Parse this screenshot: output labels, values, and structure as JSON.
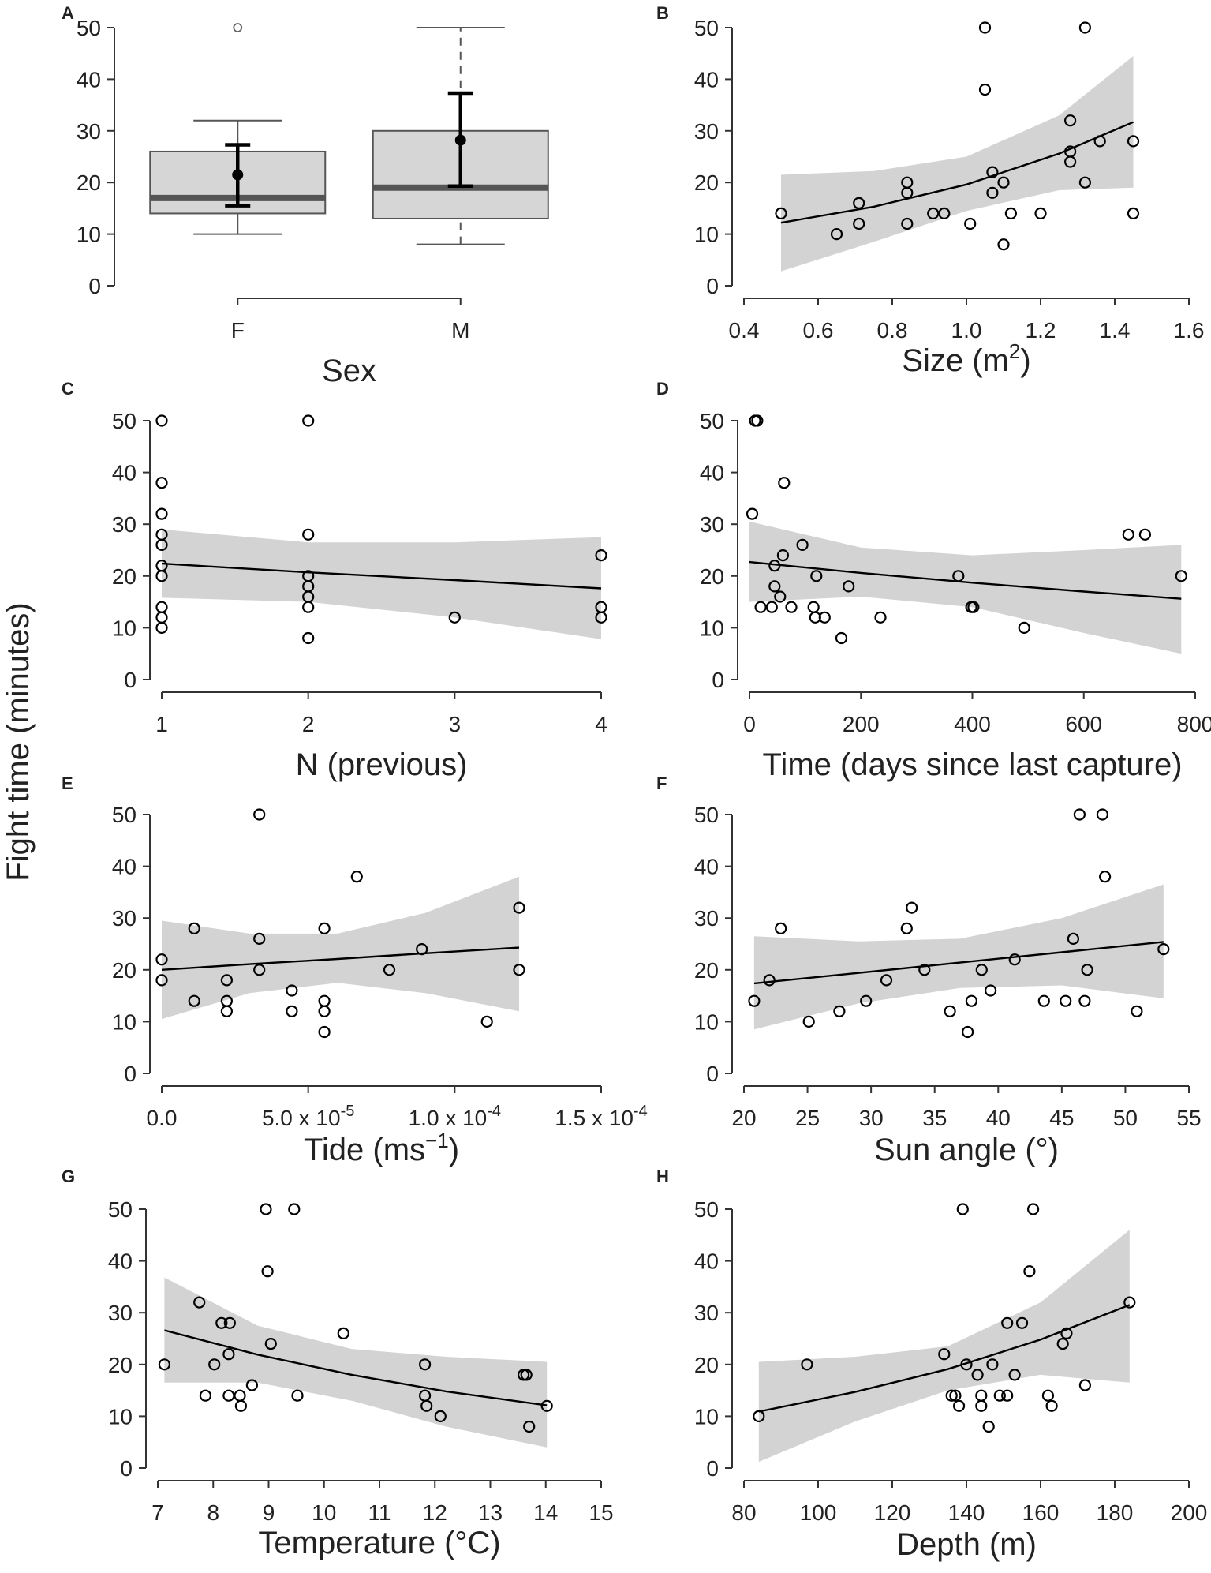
{
  "y_axis_label": "Fight time (minutes)",
  "chart_data": [
    {
      "panel": "A",
      "type": "box",
      "xlabel": "Sex",
      "ylabel": "Fight time (minutes)",
      "categories": [
        "F",
        "M"
      ],
      "ylim": [
        0,
        50
      ],
      "yticks": [
        0,
        10,
        20,
        30,
        40,
        50
      ],
      "yticklabels": [
        "0",
        "10",
        "20",
        "30",
        "40",
        "50"
      ],
      "boxes": [
        {
          "name": "F",
          "whisker_low": 10,
          "q1": 14,
          "median": 17,
          "q3": 26,
          "whisker_high": 32,
          "outliers": [
            50
          ],
          "mean": 21.5,
          "ci_low": 15.5,
          "ci_high": 27.3
        },
        {
          "name": "M",
          "whisker_low": 8,
          "q1": 13,
          "median": 19,
          "q3": 30,
          "whisker_high": 50,
          "outliers": [],
          "mean": 28.2,
          "ci_low": 19.3,
          "ci_high": 37.3
        }
      ]
    },
    {
      "panel": "B",
      "type": "scatter",
      "xlabel": "Size (m",
      "xlabel_sup": "2",
      "xlabel_end": ")",
      "xlim": [
        0.4,
        1.6
      ],
      "ylim": [
        0,
        50
      ],
      "xticks": [
        0.4,
        0.6,
        0.8,
        1.0,
        1.2,
        1.4,
        1.6
      ],
      "xticklabels": [
        "0.4",
        "0.6",
        "0.8",
        "1.0",
        "1.2",
        "1.4",
        "1.6"
      ],
      "yticks": [
        0,
        10,
        20,
        30,
        40,
        50
      ],
      "yticklabels": [
        "0",
        "10",
        "20",
        "30",
        "40",
        "50"
      ],
      "points": [
        [
          0.5,
          14
        ],
        [
          0.65,
          10
        ],
        [
          0.71,
          16
        ],
        [
          0.71,
          12
        ],
        [
          0.84,
          20
        ],
        [
          0.84,
          18
        ],
        [
          0.84,
          12
        ],
        [
          0.91,
          14
        ],
        [
          0.94,
          14
        ],
        [
          1.01,
          12
        ],
        [
          1.05,
          50
        ],
        [
          1.05,
          38
        ],
        [
          1.07,
          22
        ],
        [
          1.07,
          18
        ],
        [
          1.1,
          20
        ],
        [
          1.1,
          8
        ],
        [
          1.12,
          14
        ],
        [
          1.2,
          14
        ],
        [
          1.28,
          32
        ],
        [
          1.28,
          26
        ],
        [
          1.28,
          24
        ],
        [
          1.32,
          50
        ],
        [
          1.32,
          20
        ],
        [
          1.36,
          28
        ],
        [
          1.45,
          28
        ],
        [
          1.45,
          14
        ]
      ],
      "fit": {
        "x": [
          0.5,
          0.75,
          1.0,
          1.25,
          1.45
        ],
        "y": [
          12.2,
          15.3,
          19.6,
          25.6,
          31.7
        ]
      },
      "band": {
        "x": [
          0.5,
          0.75,
          1.0,
          1.25,
          1.45
        ],
        "low": [
          2.8,
          8.5,
          14.5,
          18.5,
          19.0
        ],
        "high": [
          21.5,
          22.2,
          25.0,
          33.0,
          44.5
        ]
      }
    },
    {
      "panel": "C",
      "type": "scatter",
      "xlabel": "N (previous)",
      "xlim": [
        1,
        4
      ],
      "ylim": [
        0,
        50
      ],
      "xticks": [
        1,
        2,
        3,
        4
      ],
      "xticklabels": [
        "1",
        "2",
        "3",
        "4"
      ],
      "yticks": [
        0,
        10,
        20,
        30,
        40,
        50
      ],
      "yticklabels": [
        "0",
        "10",
        "20",
        "30",
        "40",
        "50"
      ],
      "points": [
        [
          1,
          50
        ],
        [
          1,
          38
        ],
        [
          1,
          32
        ],
        [
          1,
          28
        ],
        [
          1,
          26
        ],
        [
          1,
          22
        ],
        [
          1,
          20
        ],
        [
          1,
          14
        ],
        [
          1,
          12
        ],
        [
          1,
          10
        ],
        [
          2,
          50
        ],
        [
          2,
          28
        ],
        [
          2,
          20
        ],
        [
          2,
          18
        ],
        [
          2,
          16
        ],
        [
          2,
          14
        ],
        [
          2,
          8
        ],
        [
          3,
          12
        ],
        [
          4,
          24
        ],
        [
          4,
          14
        ],
        [
          4,
          12
        ]
      ],
      "fit": {
        "x": [
          1,
          2,
          3,
          4
        ],
        "y": [
          22.4,
          20.7,
          19.2,
          17.6
        ]
      },
      "band": {
        "x": [
          1,
          2,
          3,
          4
        ],
        "low": [
          15.8,
          15.0,
          12.0,
          7.8
        ],
        "high": [
          29.0,
          26.5,
          26.5,
          27.5
        ]
      }
    },
    {
      "panel": "D",
      "type": "scatter",
      "xlabel": "Time (days since last capture)",
      "xlim": [
        0,
        800
      ],
      "ylim": [
        0,
        50
      ],
      "xticks": [
        0,
        200,
        400,
        600,
        800
      ],
      "xticklabels": [
        "0",
        "200",
        "400",
        "600",
        "800"
      ],
      "yticks": [
        0,
        10,
        20,
        30,
        40,
        50
      ],
      "yticklabels": [
        "0",
        "10",
        "20",
        "30",
        "40",
        "50"
      ],
      "points": [
        [
          5,
          32
        ],
        [
          10,
          50
        ],
        [
          14,
          50
        ],
        [
          20,
          14
        ],
        [
          40,
          14
        ],
        [
          45,
          18
        ],
        [
          45,
          22
        ],
        [
          55,
          16
        ],
        [
          60,
          24
        ],
        [
          62,
          38
        ],
        [
          75,
          14
        ],
        [
          95,
          26
        ],
        [
          115,
          14
        ],
        [
          118,
          12
        ],
        [
          120,
          20
        ],
        [
          135,
          12
        ],
        [
          165,
          8
        ],
        [
          178,
          18
        ],
        [
          235,
          12
        ],
        [
          375,
          20
        ],
        [
          398,
          14
        ],
        [
          402,
          14
        ],
        [
          493,
          10
        ],
        [
          680,
          28
        ],
        [
          710,
          28
        ],
        [
          775,
          20
        ]
      ],
      "fit": {
        "x": [
          0,
          200,
          400,
          600,
          775
        ],
        "y": [
          22.7,
          20.6,
          18.7,
          17.0,
          15.6
        ]
      },
      "band": {
        "x": [
          0,
          200,
          400,
          600,
          775
        ],
        "low": [
          15.0,
          16.0,
          14.0,
          9.0,
          5.0
        ],
        "high": [
          30.5,
          25.5,
          24.0,
          25.0,
          26.0
        ]
      }
    },
    {
      "panel": "E",
      "type": "scatter",
      "xlabel": "Tide (ms",
      "xlabel_sup": "−1",
      "xlabel_end": ")",
      "xlim": [
        0,
        0.00015
      ],
      "ylim": [
        0,
        50
      ],
      "xticks": [
        0,
        5e-05,
        0.0001,
        0.00015
      ],
      "xticklabels": [
        "0.0",
        "5.0 x 10",
        "1.0 x 10",
        "1.5 x 10"
      ],
      "xtick_exponents": [
        "",
        "-5",
        "-4",
        "-4"
      ],
      "yticks": [
        0,
        10,
        20,
        30,
        40,
        50
      ],
      "yticklabels": [
        "0",
        "10",
        "20",
        "30",
        "40",
        "50"
      ],
      "points": [
        [
          0,
          22
        ],
        [
          0,
          18
        ],
        [
          1.11e-05,
          28
        ],
        [
          1.11e-05,
          14
        ],
        [
          2.22e-05,
          18
        ],
        [
          2.22e-05,
          14
        ],
        [
          2.22e-05,
          12
        ],
        [
          3.33e-05,
          50
        ],
        [
          3.33e-05,
          26
        ],
        [
          3.33e-05,
          20
        ],
        [
          4.44e-05,
          16
        ],
        [
          4.44e-05,
          12
        ],
        [
          5.55e-05,
          28
        ],
        [
          5.55e-05,
          14
        ],
        [
          5.55e-05,
          12
        ],
        [
          5.55e-05,
          8
        ],
        [
          6.66e-05,
          38
        ],
        [
          7.77e-05,
          20
        ],
        [
          8.88e-05,
          24
        ],
        [
          0.000111,
          10
        ],
        [
          0.000122,
          32
        ],
        [
          0.000122,
          20
        ]
      ],
      "fit": {
        "x": [
          0,
          3e-05,
          6e-05,
          9e-05,
          0.000122
        ],
        "y": [
          20.0,
          21.1,
          22.1,
          23.2,
          24.3
        ]
      },
      "band": {
        "x": [
          0,
          3e-05,
          6e-05,
          9e-05,
          0.000122
        ],
        "low": [
          10.5,
          15.5,
          17.5,
          15.5,
          12.0
        ],
        "high": [
          29.5,
          27.0,
          27.0,
          31.0,
          38.0
        ]
      }
    },
    {
      "panel": "F",
      "type": "scatter",
      "xlabel": "Sun angle (°)",
      "xlim": [
        20,
        55
      ],
      "ylim": [
        0,
        50
      ],
      "xticks": [
        20,
        25,
        30,
        35,
        40,
        45,
        50,
        55
      ],
      "xticklabels": [
        "20",
        "25",
        "30",
        "35",
        "40",
        "45",
        "50",
        "55"
      ],
      "yticks": [
        0,
        10,
        20,
        30,
        40,
        50
      ],
      "yticklabels": [
        "0",
        "10",
        "20",
        "30",
        "40",
        "50"
      ],
      "points": [
        [
          20.8,
          14
        ],
        [
          22.0,
          18
        ],
        [
          22.9,
          28
        ],
        [
          25.1,
          10
        ],
        [
          27.5,
          12
        ],
        [
          29.6,
          14
        ],
        [
          31.2,
          18
        ],
        [
          32.8,
          28
        ],
        [
          33.2,
          32
        ],
        [
          34.2,
          20
        ],
        [
          36.2,
          12
        ],
        [
          37.6,
          8
        ],
        [
          37.9,
          14
        ],
        [
          38.7,
          20
        ],
        [
          39.4,
          16
        ],
        [
          41.3,
          22
        ],
        [
          43.6,
          14
        ],
        [
          45.3,
          14
        ],
        [
          45.9,
          26
        ],
        [
          46.4,
          50
        ],
        [
          46.8,
          14
        ],
        [
          47.0,
          20
        ],
        [
          48.2,
          50
        ],
        [
          48.4,
          38
        ],
        [
          50.9,
          12
        ],
        [
          53.0,
          24
        ]
      ],
      "fit": {
        "x": [
          20.8,
          29,
          37,
          45,
          53
        ],
        "y": [
          17.4,
          19.4,
          21.4,
          23.4,
          25.4
        ]
      },
      "band": {
        "x": [
          20.8,
          29,
          37,
          45,
          53
        ],
        "low": [
          8.5,
          13.5,
          16.5,
          17.0,
          14.5
        ],
        "high": [
          26.5,
          25.5,
          26.0,
          30.0,
          36.5
        ]
      }
    },
    {
      "panel": "G",
      "type": "scatter",
      "xlabel": "Temperature (°C)",
      "xlim": [
        7,
        15
      ],
      "ylim": [
        0,
        50
      ],
      "xticks": [
        7,
        8,
        9,
        10,
        11,
        12,
        13,
        14,
        15
      ],
      "xticklabels": [
        "7",
        "8",
        "9",
        "10",
        "11",
        "12",
        "13",
        "14",
        "15"
      ],
      "yticks": [
        0,
        10,
        20,
        30,
        40,
        50
      ],
      "yticklabels": [
        "0",
        "10",
        "20",
        "30",
        "40",
        "50"
      ],
      "points": [
        [
          7.12,
          20
        ],
        [
          7.75,
          32
        ],
        [
          7.86,
          14
        ],
        [
          8.02,
          20
        ],
        [
          8.15,
          28
        ],
        [
          8.28,
          22
        ],
        [
          8.28,
          14
        ],
        [
          8.3,
          28
        ],
        [
          8.48,
          14
        ],
        [
          8.5,
          12
        ],
        [
          8.7,
          16
        ],
        [
          8.95,
          50
        ],
        [
          8.98,
          38
        ],
        [
          9.04,
          24
        ],
        [
          9.46,
          50
        ],
        [
          9.52,
          14
        ],
        [
          10.35,
          26
        ],
        [
          11.82,
          20
        ],
        [
          11.82,
          14
        ],
        [
          11.85,
          12
        ],
        [
          12.1,
          10
        ],
        [
          13.6,
          18
        ],
        [
          13.65,
          18
        ],
        [
          13.7,
          8
        ],
        [
          14.02,
          12
        ]
      ],
      "fit": {
        "x": [
          7.12,
          8.8,
          10.5,
          12.2,
          14.02
        ],
        "y": [
          26.6,
          21.9,
          18.0,
          14.8,
          12.1
        ]
      },
      "band": {
        "x": [
          7.12,
          8.8,
          10.5,
          12.2,
          14.02
        ],
        "low": [
          16.5,
          16.5,
          13.0,
          8.0,
          4.0
        ],
        "high": [
          36.8,
          27.5,
          23.0,
          21.5,
          20.5
        ]
      }
    },
    {
      "panel": "H",
      "type": "scatter",
      "xlabel": "Depth (m)",
      "xlim": [
        80,
        200
      ],
      "ylim": [
        0,
        50
      ],
      "xticks": [
        80,
        100,
        120,
        140,
        160,
        180,
        200
      ],
      "xticklabels": [
        "80",
        "100",
        "120",
        "140",
        "160",
        "180",
        "200"
      ],
      "yticks": [
        0,
        10,
        20,
        30,
        40,
        50
      ],
      "yticklabels": [
        "0",
        "10",
        "20",
        "30",
        "40",
        "50"
      ],
      "points": [
        [
          84,
          10
        ],
        [
          97,
          20
        ],
        [
          134,
          22
        ],
        [
          136,
          14
        ],
        [
          137,
          14
        ],
        [
          138,
          12
        ],
        [
          139,
          50
        ],
        [
          140,
          20
        ],
        [
          143,
          18
        ],
        [
          144,
          14
        ],
        [
          144,
          12
        ],
        [
          146,
          8
        ],
        [
          147,
          20
        ],
        [
          149,
          14
        ],
        [
          151,
          14
        ],
        [
          151,
          28
        ],
        [
          153,
          18
        ],
        [
          155,
          28
        ],
        [
          157,
          38
        ],
        [
          158,
          50
        ],
        [
          162,
          14
        ],
        [
          163,
          12
        ],
        [
          166,
          24
        ],
        [
          167,
          26
        ],
        [
          172,
          16
        ],
        [
          184,
          32
        ]
      ],
      "fit": {
        "x": [
          84,
          110,
          135,
          160,
          184
        ],
        "y": [
          10.9,
          14.7,
          19.1,
          24.8,
          31.5
        ]
      },
      "band": {
        "x": [
          84,
          110,
          135,
          160,
          184
        ],
        "low": [
          1.2,
          9.0,
          15.0,
          18.0,
          16.5
        ],
        "high": [
          20.5,
          21.5,
          23.5,
          32.0,
          46.0
        ]
      }
    }
  ]
}
